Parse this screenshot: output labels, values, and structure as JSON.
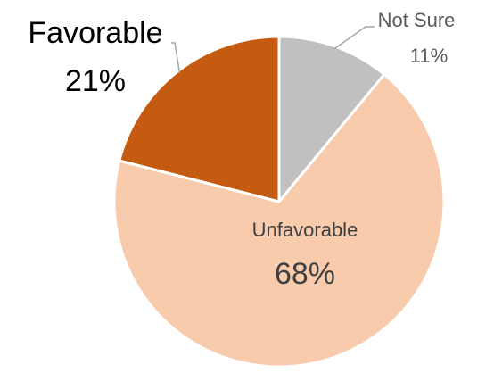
{
  "chart_data": {
    "type": "pie",
    "title": "",
    "slices": [
      {
        "label": "Not Sure",
        "value": 11,
        "value_label": "11%",
        "color": "#C0C0C0"
      },
      {
        "label": "Unfavorable",
        "value": 68,
        "value_label": "68%",
        "color": "#F7CBAC"
      },
      {
        "label": "Favorable",
        "value": 21,
        "value_label": "21%",
        "color": "#C55A11"
      }
    ],
    "start_angle_deg": 0,
    "direction": "clockwise",
    "legend": "none",
    "data_labels": "category name and percentage"
  }
}
